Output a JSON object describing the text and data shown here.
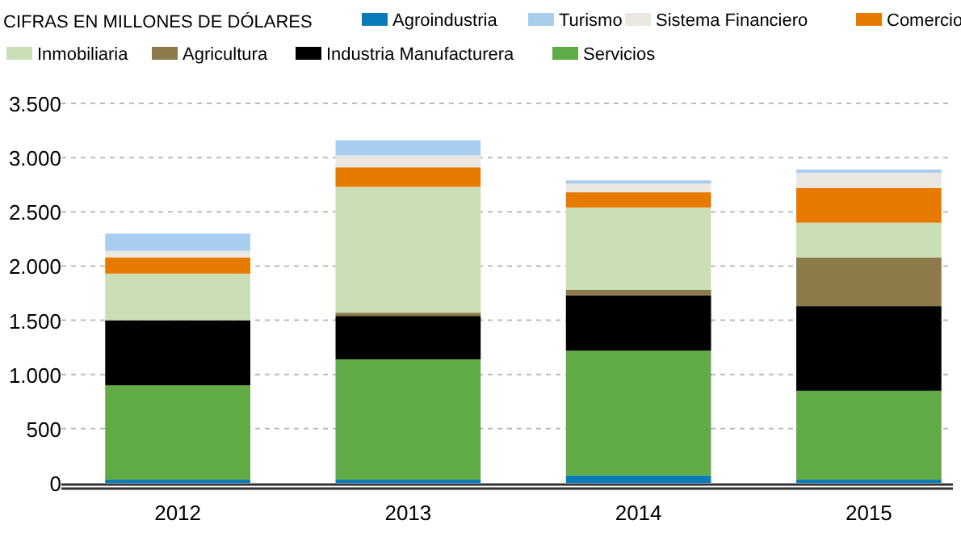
{
  "chart_data": {
    "type": "bar",
    "title": "CIFRAS EN MILLONES DE DÓLARES",
    "stacked": true,
    "categories": [
      "2012",
      "2013",
      "2014",
      "2015"
    ],
    "series": [
      {
        "name": "Agroindustria",
        "color": "#0a7ab8",
        "values": [
          30,
          30,
          70,
          30
        ]
      },
      {
        "name": "Servicios",
        "color": "#60ab45",
        "values": [
          870,
          1110,
          1150,
          820
        ]
      },
      {
        "name": "Industria Manufacturera",
        "color": "#000000",
        "values": [
          600,
          400,
          510,
          780
        ]
      },
      {
        "name": "Agricultura",
        "color": "#8d7a4a",
        "values": [
          0,
          30,
          50,
          450
        ]
      },
      {
        "name": "Inmobiliaria",
        "color": "#cadfb5",
        "values": [
          430,
          1160,
          760,
          320
        ]
      },
      {
        "name": "Comercio",
        "color": "#e67a00",
        "values": [
          150,
          180,
          140,
          320
        ]
      },
      {
        "name": "Sistema Financiero",
        "color": "#ebe8e1",
        "values": [
          60,
          110,
          80,
          140
        ]
      },
      {
        "name": "Turismo",
        "color": "#a9cdef",
        "values": [
          160,
          140,
          30,
          30
        ]
      }
    ],
    "ylim": [
      0,
      3500
    ],
    "yticks": [
      {
        "value": 0,
        "label": "0"
      },
      {
        "value": 500,
        "label": "500"
      },
      {
        "value": 1000,
        "label": "1.000"
      },
      {
        "value": 1500,
        "label": "1.500"
      },
      {
        "value": 2000,
        "label": "2.000"
      },
      {
        "value": 2500,
        "label": "2.500"
      },
      {
        "value": 3000,
        "label": "3.000"
      },
      {
        "value": 3500,
        "label": "3.500"
      }
    ],
    "grid": "y",
    "legend": "top"
  }
}
